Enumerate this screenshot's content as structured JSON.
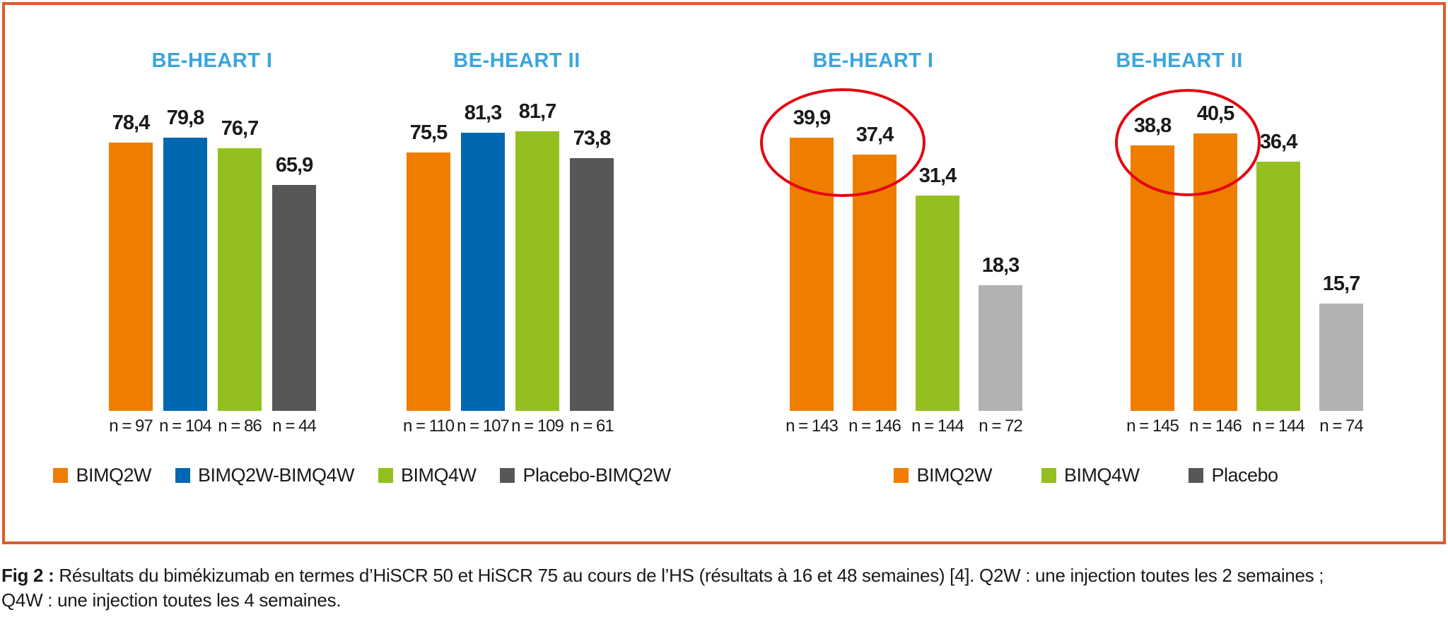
{
  "figure": {
    "frame_color": "#dc5c2c",
    "title_color": "#3aa5de",
    "highlight_color": "#e30613"
  },
  "chart_data": [
    {
      "type": "bar",
      "title": "BE-HEART I",
      "categories": [
        "BIMQ2W",
        "BIMQ2W-BIMQ4W",
        "BIMQ4W",
        "Placebo-BIMQ2W"
      ],
      "values": [
        78.4,
        79.8,
        76.7,
        65.9
      ],
      "value_labels": [
        "78,4",
        "79,8",
        "76,7",
        "65,9"
      ],
      "n_labels": [
        "n = 97",
        "n = 104",
        "n = 86",
        "n = 44"
      ],
      "colors": [
        "#ee7d00",
        "#0068b0",
        "#93c01f",
        "#575756"
      ],
      "ylim": [
        0,
        100
      ],
      "grid": false,
      "highlight": false
    },
    {
      "type": "bar",
      "title": "BE-HEART II",
      "categories": [
        "BIMQ2W",
        "BIMQ2W-BIMQ4W",
        "BIMQ4W",
        "Placebo-BIMQ2W"
      ],
      "values": [
        75.5,
        81.3,
        81.7,
        73.8
      ],
      "value_labels": [
        "75,5",
        "81,3",
        "81,7",
        "73,8"
      ],
      "n_labels": [
        "n = 110",
        "n = 107",
        "n = 109",
        "n = 61"
      ],
      "colors": [
        "#ee7d00",
        "#0068b0",
        "#93c01f",
        "#575756"
      ],
      "ylim": [
        0,
        100
      ],
      "grid": false,
      "highlight": false
    },
    {
      "type": "bar",
      "title": "BE-HEART I",
      "categories": [
        "BIMQ2W",
        "BIMQ2W",
        "BIMQ4W",
        "Placebo"
      ],
      "values": [
        39.9,
        37.4,
        31.4,
        18.3
      ],
      "value_labels": [
        "39,9",
        "37,4",
        "31,4",
        "18,3"
      ],
      "n_labels": [
        "n = 143",
        "n = 146",
        "n = 144",
        "n = 72"
      ],
      "colors": [
        "#ee7d00",
        "#ee7d00",
        "#93c01f",
        "#b2b2b2"
      ],
      "ylim": [
        0,
        50
      ],
      "grid": false,
      "highlight": true
    },
    {
      "type": "bar",
      "title": "BE-HEART II",
      "categories": [
        "BIMQ2W",
        "BIMQ2W",
        "BIMQ4W",
        "Placebo"
      ],
      "values": [
        38.8,
        40.5,
        36.4,
        15.7
      ],
      "value_labels": [
        "38,8",
        "40,5",
        "36,4",
        "15,7"
      ],
      "n_labels": [
        "n = 145",
        "n = 146",
        "n = 144",
        "n = 74"
      ],
      "colors": [
        "#ee7d00",
        "#ee7d00",
        "#93c01f",
        "#b2b2b2"
      ],
      "ylim": [
        0,
        50
      ],
      "grid": false,
      "highlight": true
    }
  ],
  "legends": {
    "left": [
      {
        "label": "BIMQ2W",
        "color": "#ee7d00"
      },
      {
        "label": "BIMQ2W-BIMQ4W",
        "color": "#0068b0"
      },
      {
        "label": "BIMQ4W",
        "color": "#93c01f"
      },
      {
        "label": "Placebo-BIMQ2W",
        "color": "#575756"
      }
    ],
    "right": [
      {
        "label": "BIMQ2W",
        "color": "#ee7d00"
      },
      {
        "label": "BIMQ4W",
        "color": "#93c01f"
      },
      {
        "label": "Placebo",
        "color": "#575756"
      }
    ]
  },
  "caption": {
    "prefix": "Fig 2 :",
    "line1_rest": " Résultats du bimékizumab en termes d’HiSCR 50 et HiSCR 75 au cours de l’HS (résultats à 16 et 48 semaines) [4]. Q2W : une injection toutes les 2 semaines ;",
    "line2": "Q4W : une injection toutes les 4 semaines."
  }
}
